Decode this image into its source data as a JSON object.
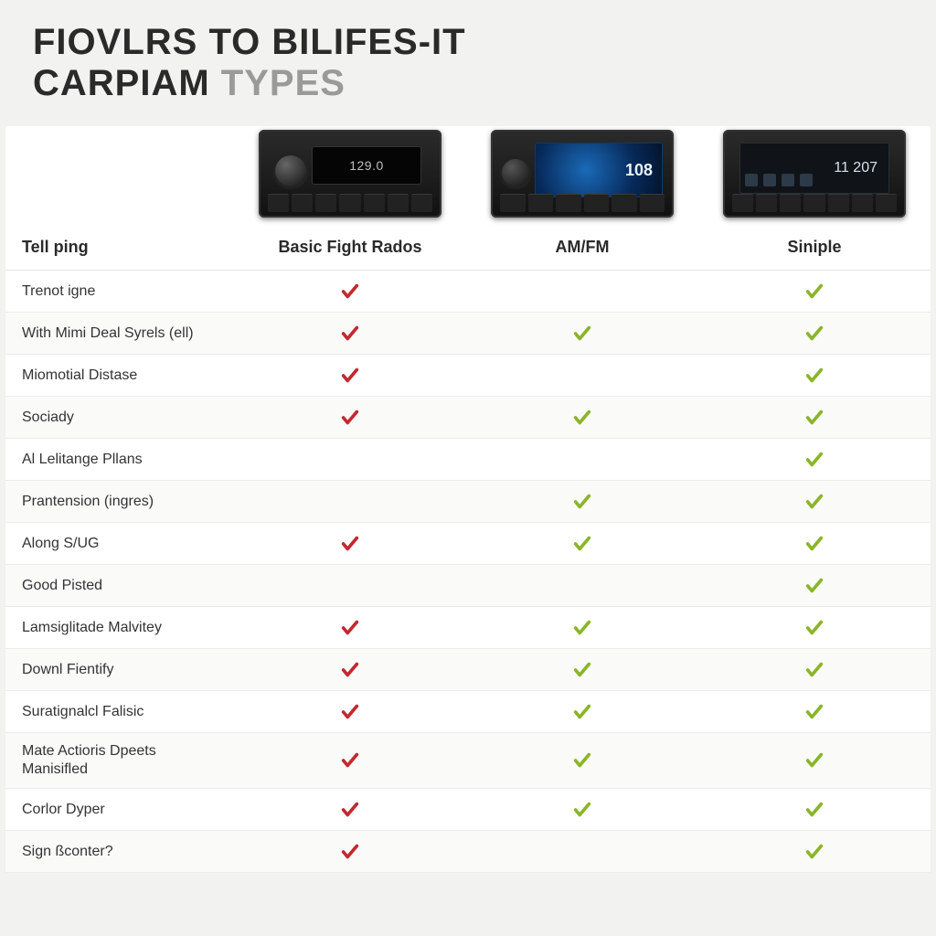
{
  "title": {
    "line1": "FIOVLRS TO BILIFES-IT",
    "line2_a": "CARPIAM",
    "line2_b": " TYPES"
  },
  "header": {
    "row_label": "Tell ping",
    "columns": [
      "Basic Fight Rados",
      "AM/FM",
      "Siniple"
    ]
  },
  "products": {
    "radio1_display": "129.0",
    "radio2_display": "108",
    "radio3_display": "11  207"
  },
  "colors": {
    "check_red": "#c2292e",
    "check_green": "#8ab52a",
    "bg": "#f2f2f0",
    "table_bg": "#ffffff",
    "border": "#ececea"
  },
  "typography": {
    "title_fontsize": 40,
    "col_header_fontsize": 18,
    "label_fontsize": 16
  },
  "features": [
    {
      "label": "Trenot igne",
      "cells": [
        "red",
        "",
        "green"
      ]
    },
    {
      "label": "With Mimi Deal Syrels (ell)",
      "cells": [
        "red",
        "green",
        "green"
      ]
    },
    {
      "label": "Miomotial Distase",
      "cells": [
        "red",
        "",
        "green"
      ]
    },
    {
      "label": "Sociady",
      "cells": [
        "red",
        "green",
        "green"
      ]
    },
    {
      "label": "Al Lelitange Pllans",
      "cells": [
        "",
        "",
        "green"
      ]
    },
    {
      "label": "Prantension (ingres)",
      "cells": [
        "",
        "green",
        "green"
      ]
    },
    {
      "label": "Along S/UG",
      "cells": [
        "red",
        "green",
        "green"
      ]
    },
    {
      "label": "Good Pisted",
      "cells": [
        "",
        "",
        "green"
      ]
    },
    {
      "label": "Lamsiglitade Malvitey",
      "cells": [
        "red",
        "green",
        "green"
      ]
    },
    {
      "label": "Downl Fientify",
      "cells": [
        "red",
        "green",
        "green"
      ]
    },
    {
      "label": "Suratignalcl Falisic",
      "cells": [
        "red",
        "green",
        "green"
      ]
    },
    {
      "label": "Mate Actioris Dpeets Manisifled",
      "cells": [
        "red",
        "green",
        "green"
      ]
    },
    {
      "label": "Corlor Dyper",
      "cells": [
        "red",
        "green",
        "green"
      ]
    },
    {
      "label": "Sign ßconter?",
      "cells": [
        "red",
        "",
        "green"
      ]
    }
  ]
}
